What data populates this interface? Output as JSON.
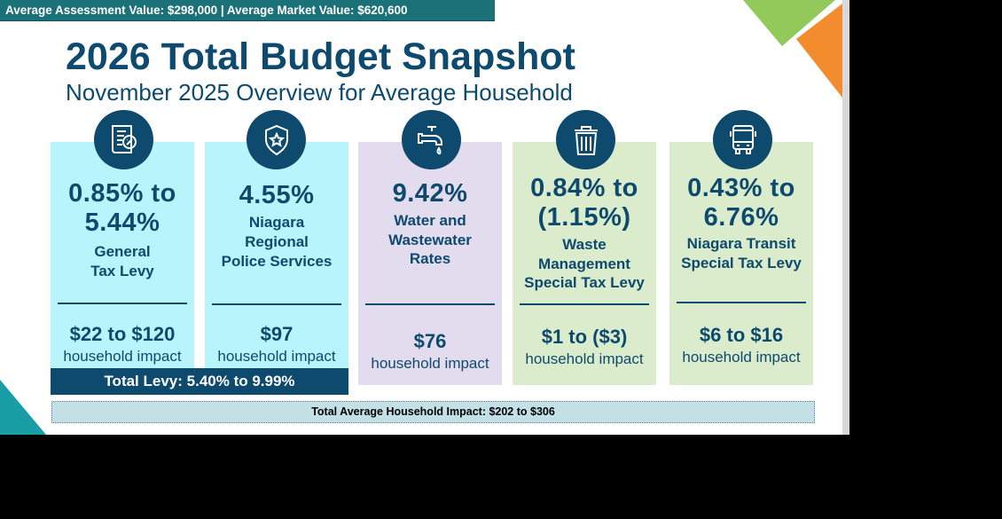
{
  "header_bar": "Average Assessment Value: $298,000 | Average Market Value: $620,600",
  "title": "2026 Total Budget Snapshot",
  "subtitle": "November 2025 Overview for Average Household",
  "colors": {
    "navy": "#0d4a6e",
    "teal_bar": "#1b7178",
    "cyan_card": "#b8f4fb",
    "lavender_card": "#e3dbee",
    "green_card": "#dbeccd",
    "accent_green": "#92c95a",
    "accent_orange": "#f28c2c",
    "accent_teal": "#1a9ea6"
  },
  "cards": [
    {
      "icon": "tax-document-percent-icon",
      "rate": [
        "0.85% to",
        "5.44%"
      ],
      "label": [
        "General",
        "Tax Levy"
      ],
      "amount": "$22 to $120",
      "impact": "household impact"
    },
    {
      "icon": "police-badge-icon",
      "rate": [
        "4.55%"
      ],
      "label": [
        "Niagara",
        "Regional",
        "Police Services"
      ],
      "amount": "$97",
      "impact": "household impact"
    },
    {
      "icon": "water-faucet-icon",
      "rate": [
        "9.42%"
      ],
      "label": [
        "Water and",
        "Wastewater",
        "Rates"
      ],
      "amount": "$76",
      "impact": "household impact"
    },
    {
      "icon": "trash-can-icon",
      "rate": [
        "0.84% to",
        "(1.15%)"
      ],
      "label": [
        "Waste",
        "Management",
        "Special Tax Levy"
      ],
      "amount": "$1 to ($3)",
      "impact": "household impact"
    },
    {
      "icon": "bus-icon",
      "rate": [
        "0.43% to",
        "6.76%"
      ],
      "label": [
        "Niagara Transit",
        "Special Tax Levy"
      ],
      "amount": "$6 to $16",
      "impact": "household impact"
    }
  ],
  "total_levy": "Total Levy: 5.40% to 9.99%",
  "total_impact": "Total Average Household Impact: $202 to $306"
}
